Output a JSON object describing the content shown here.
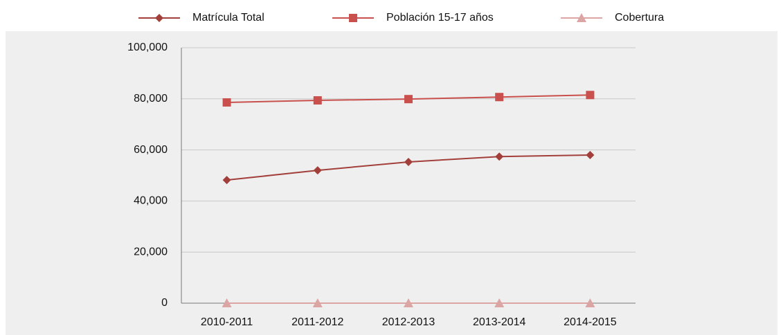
{
  "chart_data": {
    "type": "line",
    "categories": [
      "2010-2011",
      "2011-2012",
      "2012-2013",
      "2013-2014",
      "2014-2015"
    ],
    "series": [
      {
        "name": "Matrícula Total",
        "color": "#a33f3b",
        "marker": "diamond",
        "values": [
          48200,
          52000,
          55300,
          57400,
          58000
        ]
      },
      {
        "name": "Población 15-17 años",
        "color": "#c9504c",
        "marker": "square",
        "values": [
          78600,
          79400,
          79900,
          80700,
          81500
        ]
      },
      {
        "name": "Cobertura",
        "color": "#dba5a4",
        "marker": "triangle",
        "values": [
          0.61,
          0.65,
          0.69,
          0.71,
          0.71
        ]
      }
    ],
    "ylim": [
      0,
      100000
    ],
    "yticks": [
      0,
      {
        "value": 20000,
        "label": "20,000"
      },
      {
        "value": 40000,
        "label": "40,000"
      },
      {
        "value": 60000,
        "label": "60,000"
      },
      {
        "value": 80000,
        "label": "80,000"
      },
      {
        "value": 100000,
        "label": "100,000"
      }
    ],
    "grid": true,
    "legend": "top"
  }
}
